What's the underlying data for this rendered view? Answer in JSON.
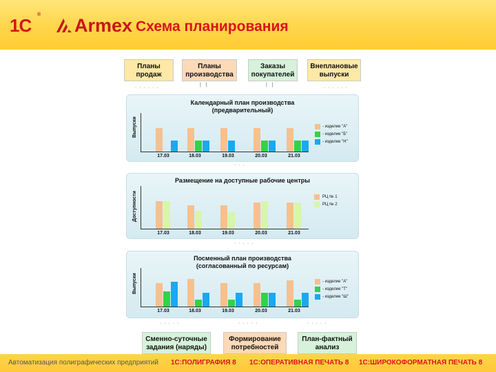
{
  "header": {
    "logo_1c": "1С",
    "logo_armex": "Armex",
    "title": "Схема планирования"
  },
  "top_boxes": [
    {
      "line1": "Планы",
      "line2": "продаж"
    },
    {
      "line1": "Планы",
      "line2": "производства"
    },
    {
      "line1": "Заказы",
      "line2": "покупателей"
    },
    {
      "line1": "Внеплановые",
      "line2": "выпуски"
    }
  ],
  "panels": [
    {
      "title_line1": "Календарный план производства",
      "title_line2": "(предварительный)",
      "y_label": "Выпуски",
      "legend": [
        "- изделие \"А\"",
        "- изделие \"Б\"",
        "- изделие \"Н\""
      ]
    },
    {
      "title_line1": "Размещение на доступные рабочие центры",
      "y_label": "Доступности",
      "legend": [
        "РЦ № 1",
        "РЦ № 2"
      ]
    },
    {
      "title_line1": "Посменный план производства",
      "title_line2": "(согласованный по ресурсам)",
      "y_label": "Выпуски",
      "legend": [
        "- изделие \"А\"",
        "- изделие \"Т\"",
        "- изделие \"Ш\""
      ]
    }
  ],
  "x_dates": [
    "17.03",
    "18.03",
    "19.03",
    "20.03",
    "21.03"
  ],
  "bottom_boxes": [
    {
      "line1": "Сменно-суточные",
      "line2": "задания (наряды)"
    },
    {
      "line1": "Формирование",
      "line2": "потребностей"
    },
    {
      "line1": "План-фактный",
      "line2": "анализ"
    }
  ],
  "footer": {
    "tagline": "Автоматизация полиграфических предприятий",
    "product1": "1С:ПОЛИГРАФИЯ 8",
    "product2": "1С:ОПЕРАТИВНАЯ ПЕЧАТЬ 8",
    "product3": "1С:ШИРОКОФОРМАТНАЯ ПЕЧАТЬ 8"
  },
  "colors": {
    "peach": "#f6c08f",
    "green": "#2fd447",
    "blue": "#19a9f0",
    "lightgreen": "#d9f5a9",
    "brand_red": "#d8141a"
  }
}
